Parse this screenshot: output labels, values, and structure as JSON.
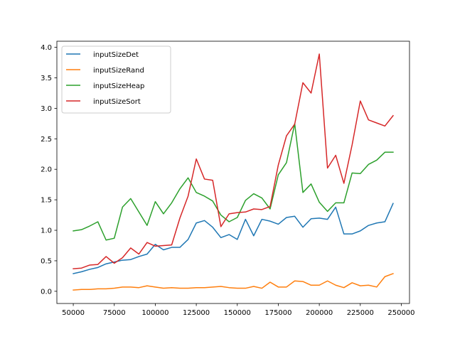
{
  "chart_data": {
    "type": "line",
    "title": "",
    "xlabel": "",
    "ylabel": "",
    "xlim": [
      40000,
      255000
    ],
    "ylim": [
      -0.2,
      4.1
    ],
    "xticks": [
      50000,
      75000,
      100000,
      125000,
      150000,
      175000,
      200000,
      225000,
      250000
    ],
    "xtick_labels": [
      "50000",
      "75000",
      "100000",
      "125000",
      "150000",
      "175000",
      "200000",
      "225000",
      "250000"
    ],
    "yticks": [
      0.0,
      0.5,
      1.0,
      1.5,
      2.0,
      2.5,
      3.0,
      3.5,
      4.0
    ],
    "ytick_labels": [
      "0.0",
      "0.5",
      "1.0",
      "1.5",
      "2.0",
      "2.5",
      "3.0",
      "3.5",
      "4.0"
    ],
    "grid": false,
    "legend_position": "top-left",
    "x": [
      50000,
      55000,
      60000,
      65000,
      70000,
      75000,
      80000,
      85000,
      90000,
      95000,
      100000,
      105000,
      110000,
      115000,
      120000,
      125000,
      130000,
      135000,
      140000,
      145000,
      150000,
      155000,
      160000,
      165000,
      170000,
      175000,
      180000,
      185000,
      190000,
      195000,
      200000,
      205000,
      210000,
      215000,
      220000,
      225000,
      230000,
      235000,
      240000,
      245000
    ],
    "series": [
      {
        "name": "inputSizeDet",
        "color": "#1f77b4",
        "values": [
          0.29,
          0.32,
          0.36,
          0.39,
          0.45,
          0.48,
          0.51,
          0.52,
          0.57,
          0.61,
          0.77,
          0.68,
          0.72,
          0.72,
          0.85,
          1.12,
          1.16,
          1.05,
          0.88,
          0.93,
          0.85,
          1.18,
          0.91,
          1.18,
          1.15,
          1.1,
          1.21,
          1.23,
          1.05,
          1.19,
          1.2,
          1.18,
          1.38,
          0.94,
          0.94,
          0.99,
          1.08,
          1.12,
          1.14,
          1.44
        ]
      },
      {
        "name": "inputSizeRand",
        "color": "#ff7f0e",
        "values": [
          0.02,
          0.03,
          0.03,
          0.04,
          0.04,
          0.05,
          0.07,
          0.07,
          0.06,
          0.09,
          0.07,
          0.05,
          0.06,
          0.05,
          0.05,
          0.06,
          0.06,
          0.07,
          0.08,
          0.06,
          0.05,
          0.05,
          0.08,
          0.05,
          0.15,
          0.07,
          0.07,
          0.17,
          0.16,
          0.1,
          0.1,
          0.17,
          0.1,
          0.06,
          0.14,
          0.09,
          0.1,
          0.07,
          0.24,
          0.29
        ]
      },
      {
        "name": "inputSizeHeap",
        "color": "#2ca02c",
        "values": [
          0.99,
          1.01,
          1.07,
          1.14,
          0.84,
          0.87,
          1.38,
          1.52,
          1.3,
          1.08,
          1.47,
          1.27,
          1.45,
          1.68,
          1.86,
          1.62,
          1.56,
          1.48,
          1.25,
          1.14,
          1.21,
          1.49,
          1.6,
          1.53,
          1.35,
          1.91,
          2.11,
          2.75,
          1.62,
          1.76,
          1.46,
          1.31,
          1.45,
          1.45,
          1.94,
          1.93,
          2.08,
          2.15,
          2.28,
          2.28
        ]
      },
      {
        "name": "inputSizeSort",
        "color": "#d62728",
        "values": [
          0.37,
          0.38,
          0.43,
          0.44,
          0.57,
          0.46,
          0.55,
          0.71,
          0.61,
          0.8,
          0.74,
          0.75,
          0.76,
          1.2,
          1.56,
          2.17,
          1.84,
          1.82,
          1.06,
          1.27,
          1.29,
          1.3,
          1.35,
          1.34,
          1.39,
          2.07,
          2.55,
          2.74,
          3.42,
          3.25,
          3.89,
          2.02,
          2.23,
          1.77,
          2.4,
          3.12,
          2.81,
          2.76,
          2.71,
          2.88
        ]
      }
    ]
  }
}
